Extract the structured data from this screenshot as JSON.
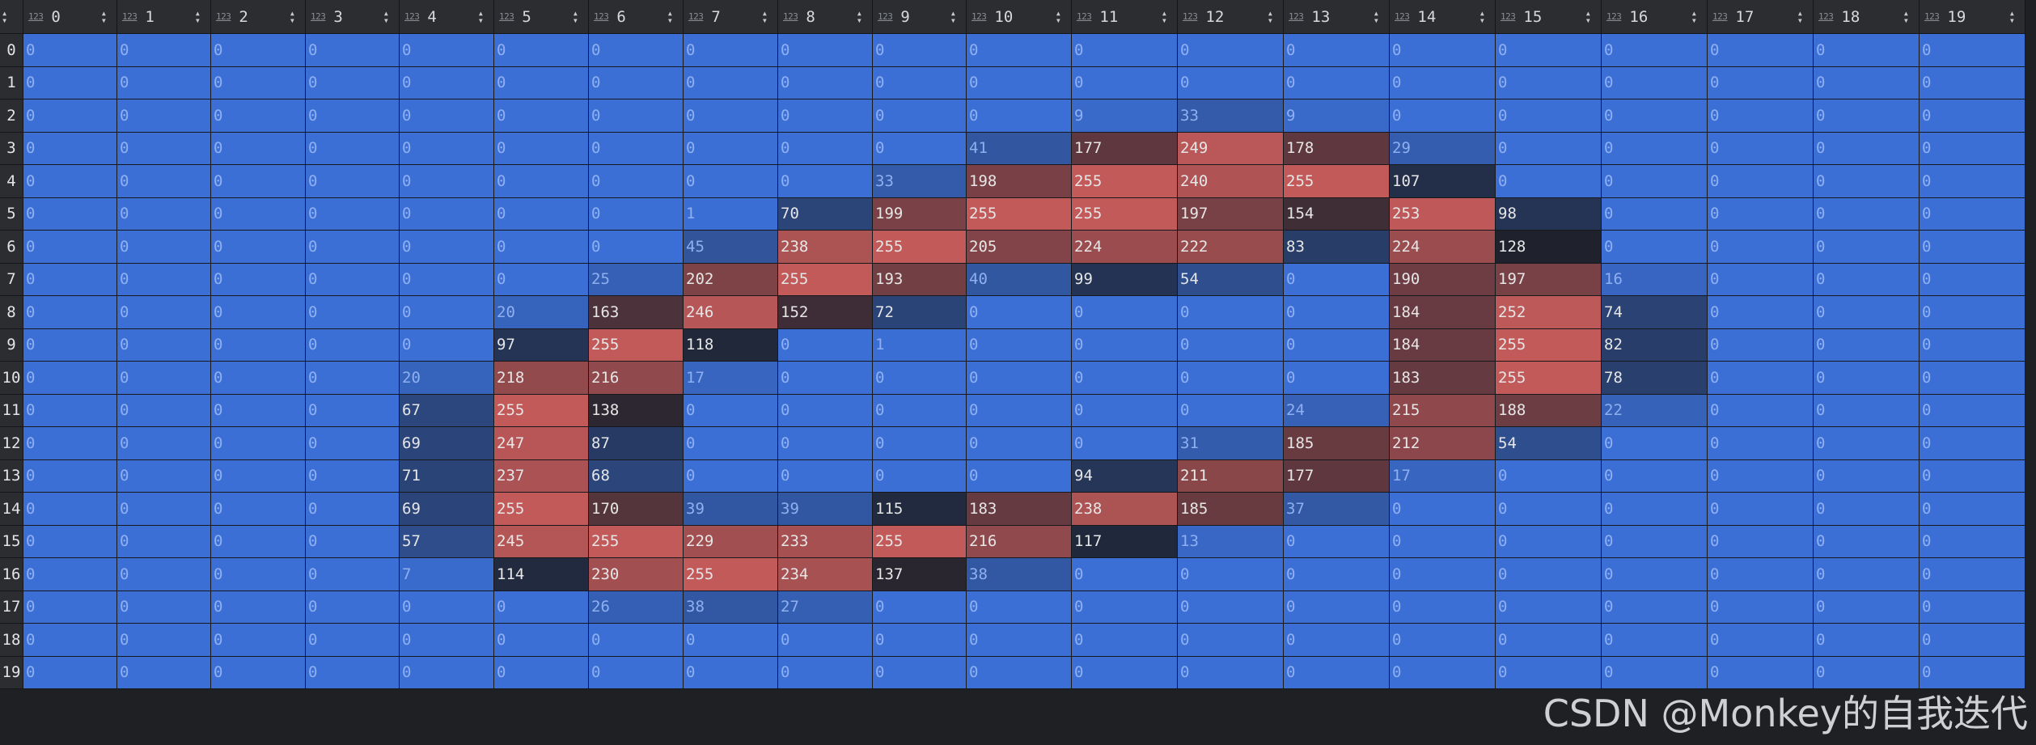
{
  "table": {
    "type_label": "123",
    "columns": [
      "0",
      "1",
      "2",
      "3",
      "4",
      "5",
      "6",
      "7",
      "8",
      "9",
      "10",
      "11",
      "12",
      "13",
      "14",
      "15",
      "16",
      "17",
      "18",
      "19"
    ],
    "row_labels": [
      "0",
      "1",
      "2",
      "3",
      "4",
      "5",
      "6",
      "7",
      "8",
      "9",
      "10",
      "11",
      "12",
      "13",
      "14",
      "15",
      "16",
      "17",
      "18",
      "19"
    ],
    "rows": [
      [
        0,
        0,
        0,
        0,
        0,
        0,
        0,
        0,
        0,
        0,
        0,
        0,
        0,
        0,
        0,
        0,
        0,
        0,
        0,
        0
      ],
      [
        0,
        0,
        0,
        0,
        0,
        0,
        0,
        0,
        0,
        0,
        0,
        0,
        0,
        0,
        0,
        0,
        0,
        0,
        0,
        0
      ],
      [
        0,
        0,
        0,
        0,
        0,
        0,
        0,
        0,
        0,
        0,
        0,
        9,
        33,
        9,
        0,
        0,
        0,
        0,
        0,
        0
      ],
      [
        0,
        0,
        0,
        0,
        0,
        0,
        0,
        0,
        0,
        0,
        41,
        177,
        249,
        178,
        29,
        0,
        0,
        0,
        0,
        0
      ],
      [
        0,
        0,
        0,
        0,
        0,
        0,
        0,
        0,
        0,
        33,
        198,
        255,
        240,
        255,
        107,
        0,
        0,
        0,
        0,
        0
      ],
      [
        0,
        0,
        0,
        0,
        0,
        0,
        0,
        1,
        70,
        199,
        255,
        255,
        197,
        154,
        253,
        98,
        0,
        0,
        0,
        0
      ],
      [
        0,
        0,
        0,
        0,
        0,
        0,
        0,
        45,
        238,
        255,
        205,
        224,
        222,
        83,
        224,
        128,
        0,
        0,
        0,
        0
      ],
      [
        0,
        0,
        0,
        0,
        0,
        0,
        25,
        202,
        255,
        193,
        40,
        99,
        54,
        0,
        190,
        197,
        16,
        0,
        0,
        0
      ],
      [
        0,
        0,
        0,
        0,
        0,
        20,
        163,
        246,
        152,
        72,
        0,
        0,
        0,
        0,
        184,
        252,
        74,
        0,
        0,
        0
      ],
      [
        0,
        0,
        0,
        0,
        0,
        97,
        255,
        118,
        0,
        1,
        0,
        0,
        0,
        0,
        184,
        255,
        82,
        0,
        0,
        0
      ],
      [
        0,
        0,
        0,
        0,
        20,
        218,
        216,
        17,
        0,
        0,
        0,
        0,
        0,
        0,
        183,
        255,
        78,
        0,
        0,
        0
      ],
      [
        0,
        0,
        0,
        0,
        67,
        255,
        138,
        0,
        0,
        0,
        0,
        0,
        0,
        24,
        215,
        188,
        22,
        0,
        0,
        0
      ],
      [
        0,
        0,
        0,
        0,
        69,
        247,
        87,
        0,
        0,
        0,
        0,
        0,
        31,
        185,
        212,
        54,
        0,
        0,
        0,
        0
      ],
      [
        0,
        0,
        0,
        0,
        71,
        237,
        68,
        0,
        0,
        0,
        0,
        94,
        211,
        177,
        17,
        0,
        0,
        0,
        0,
        0
      ],
      [
        0,
        0,
        0,
        0,
        69,
        255,
        170,
        39,
        39,
        115,
        183,
        238,
        185,
        37,
        0,
        0,
        0,
        0,
        0,
        0
      ],
      [
        0,
        0,
        0,
        0,
        57,
        245,
        255,
        229,
        233,
        255,
        216,
        117,
        13,
        0,
        0,
        0,
        0,
        0,
        0,
        0
      ],
      [
        0,
        0,
        0,
        0,
        7,
        114,
        230,
        255,
        234,
        137,
        38,
        0,
        0,
        0,
        0,
        0,
        0,
        0,
        0,
        0
      ],
      [
        0,
        0,
        0,
        0,
        0,
        0,
        26,
        38,
        27,
        0,
        0,
        0,
        0,
        0,
        0,
        0,
        0,
        0,
        0,
        0
      ],
      [
        0,
        0,
        0,
        0,
        0,
        0,
        0,
        0,
        0,
        0,
        0,
        0,
        0,
        0,
        0,
        0,
        0,
        0,
        0,
        0
      ],
      [
        0,
        0,
        0,
        0,
        0,
        0,
        0,
        0,
        0,
        0,
        0,
        0,
        0,
        0,
        0,
        0,
        0,
        0,
        0,
        0
      ]
    ]
  },
  "colors": {
    "header_bg": "#2b2d30",
    "low": "#3b6fd6",
    "mid": "#1e222d",
    "high": "#c25a5a"
  },
  "watermark": "CSDN @Monkey的自我迭代"
}
